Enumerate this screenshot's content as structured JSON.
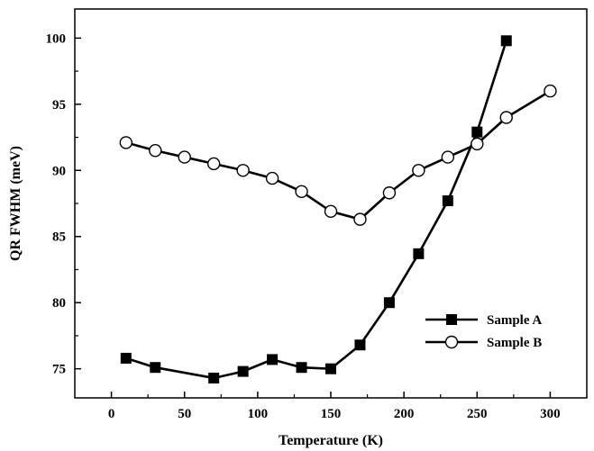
{
  "chart_data": {
    "type": "line",
    "xlabel": "Temperature (K)",
    "ylabel": "QR FWHM (meV)",
    "xlim": [
      -25,
      325
    ],
    "ylim": [
      72.8,
      102.2
    ],
    "xticks": [
      0,
      50,
      100,
      150,
      200,
      250,
      300
    ],
    "yticks": [
      75,
      80,
      85,
      90,
      95,
      100
    ],
    "grid": false,
    "legend_position": "bottom-right",
    "series": [
      {
        "name": "Sample A",
        "marker": "filled-square",
        "x": [
          10,
          30,
          70,
          90,
          110,
          130,
          150,
          170,
          190,
          210,
          230,
          250,
          270
        ],
        "y": [
          75.8,
          75.1,
          74.3,
          74.8,
          75.7,
          75.1,
          75.0,
          76.8,
          80.0,
          83.7,
          87.7,
          92.9,
          99.8
        ]
      },
      {
        "name": "Sample B",
        "marker": "open-circle",
        "x": [
          10,
          30,
          50,
          70,
          90,
          110,
          130,
          150,
          170,
          190,
          210,
          230,
          250,
          270,
          300
        ],
        "y": [
          92.1,
          91.5,
          91.0,
          90.5,
          90.0,
          89.4,
          88.4,
          86.9,
          86.3,
          88.3,
          90.0,
          91.0,
          92.0,
          94.0,
          96.0
        ]
      }
    ]
  },
  "colors": {
    "line": "#000000",
    "background": "#ffffff",
    "marker_fill_open": "#ffffff"
  }
}
